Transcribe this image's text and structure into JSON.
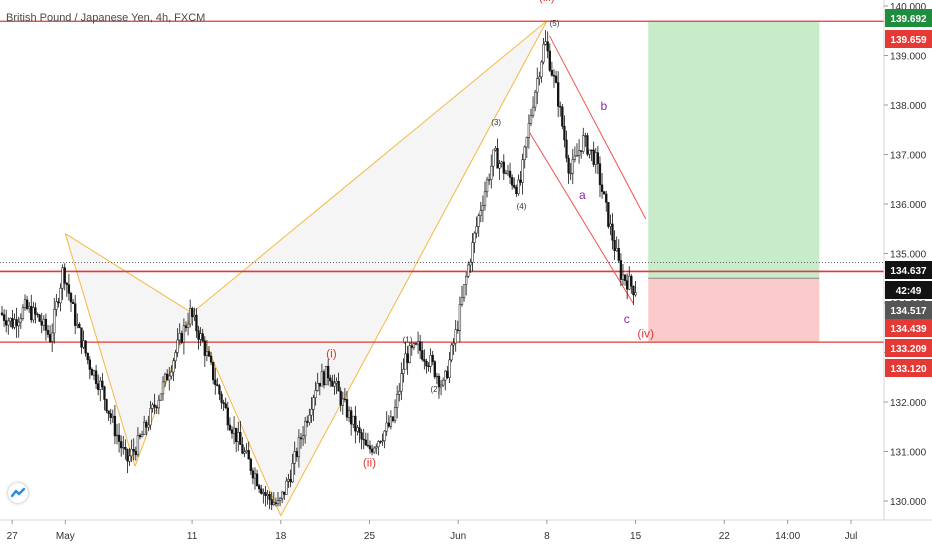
{
  "header": {
    "symbol_title": "British Pound / Japanese Yen, 4h, FXCM"
  },
  "colors": {
    "candle": "#131313",
    "harmonic_stroke": "#f5b942",
    "level_line": "#e53935",
    "channel": "#ef5350",
    "wave_red": "#e53935",
    "wave_purple": "#8e24aa",
    "tp_zone": "#c8ecc9",
    "sl_zone": "#fbcaca",
    "axis_text": "#333333",
    "badge_red": "#e53935",
    "badge_green": "#1e8e3e",
    "badge_black": "#131313",
    "badge_gray": "#555555"
  },
  "chart_data": {
    "type": "candlestick",
    "title": "British Pound / Japanese Yen, 4h, FXCM",
    "y_axis": {
      "range": [
        129.7,
        140.1
      ],
      "ticks": [
        "130.000",
        "131.000",
        "132.000",
        "133.000",
        "134.000",
        "135.000",
        "136.000",
        "137.000",
        "138.000",
        "139.000",
        "140.000"
      ]
    },
    "x_axis": {
      "ticks": [
        {
          "label": "27",
          "t": 0.8
        },
        {
          "label": "May",
          "t": 5.0
        },
        {
          "label": "11",
          "t": 15.0
        },
        {
          "label": "18",
          "t": 22.0
        },
        {
          "label": "25",
          "t": 29.0
        },
        {
          "label": "Jun",
          "t": 36.0
        },
        {
          "label": "8",
          "t": 43.0
        },
        {
          "label": "15",
          "t": 50.0
        },
        {
          "label": "22",
          "t": 57.0
        },
        {
          "label": "14:00",
          "t": 62.0
        },
        {
          "label": "Jul",
          "t": 67.0
        }
      ]
    },
    "price_path": [
      [
        0,
        133.8
      ],
      [
        1,
        133.6
      ],
      [
        2,
        133.9
      ],
      [
        3,
        133.7
      ],
      [
        4,
        133.3
      ],
      [
        5,
        134.7
      ],
      [
        6,
        133.6
      ],
      [
        7,
        132.8
      ],
      [
        8,
        132.3
      ],
      [
        9,
        131.5
      ],
      [
        10,
        130.8
      ],
      [
        11,
        131.2
      ],
      [
        12,
        131.8
      ],
      [
        13,
        132.4
      ],
      [
        14,
        133.1
      ],
      [
        15,
        133.8
      ],
      [
        16,
        133.2
      ],
      [
        17,
        132.4
      ],
      [
        18,
        131.7
      ],
      [
        19,
        131.1
      ],
      [
        20,
        130.6
      ],
      [
        21,
        130.1
      ],
      [
        22,
        129.9
      ],
      [
        23,
        130.6
      ],
      [
        24,
        131.5
      ],
      [
        25,
        132.4
      ],
      [
        26,
        132.6
      ],
      [
        27,
        132.0
      ],
      [
        28,
        131.5
      ],
      [
        29,
        131.0
      ],
      [
        30,
        131.3
      ],
      [
        31,
        131.6
      ],
      [
        32,
        132.9
      ],
      [
        33,
        133.1
      ],
      [
        34,
        132.8
      ],
      [
        35,
        132.3
      ],
      [
        36,
        133.4
      ],
      [
        37,
        134.8
      ],
      [
        38,
        136.0
      ],
      [
        39,
        137.0
      ],
      [
        40,
        136.6
      ],
      [
        41,
        136.3
      ],
      [
        42,
        138.0
      ],
      [
        43,
        139.3
      ],
      [
        44,
        138.2
      ],
      [
        45,
        136.6
      ],
      [
        46,
        137.3
      ],
      [
        47,
        136.9
      ],
      [
        48,
        135.7
      ],
      [
        49,
        134.6
      ],
      [
        50,
        134.3
      ]
    ],
    "levels": [
      {
        "price": 139.692,
        "label": "139.692",
        "kind": "level"
      },
      {
        "price": 134.637,
        "label": "134.637",
        "kind": "level"
      },
      {
        "price": 133.209,
        "label": "133.209",
        "kind": "level"
      }
    ],
    "harmonic_pattern": [
      [
        5,
        135.4
      ],
      [
        15,
        133.8
      ],
      [
        43,
        139.7
      ],
      [
        22,
        129.7
      ],
      [
        15,
        133.8
      ]
    ],
    "harmonic_points": {
      "X": [
        5,
        135.4
      ],
      "A": [
        10.5,
        130.7
      ],
      "B": [
        15,
        133.8
      ],
      "C": [
        22,
        129.7
      ],
      "D": [
        43,
        139.7
      ]
    },
    "correction_channel": [
      {
        "from": [
          43.2,
          139.4
        ],
        "to": [
          50.8,
          135.7
        ]
      },
      {
        "from": [
          41.5,
          137.5
        ],
        "to": [
          49.8,
          134.0
        ]
      }
    ],
    "wave_labels": [
      {
        "text": "(iii)",
        "t": 43.0,
        "price": 140.1,
        "color": "red",
        "size": 12
      },
      {
        "text": "(5)",
        "t": 43.6,
        "price": 139.6,
        "color": "dark",
        "size": 8
      },
      {
        "text": "(3)",
        "t": 39.0,
        "price": 137.6,
        "color": "dark",
        "size": 8
      },
      {
        "text": "(4)",
        "t": 41.0,
        "price": 135.9,
        "color": "dark",
        "size": 8
      },
      {
        "text": "(1)",
        "t": 32.0,
        "price": 133.2,
        "color": "dark",
        "size": 8
      },
      {
        "text": "(2)",
        "t": 34.2,
        "price": 132.2,
        "color": "dark",
        "size": 8
      },
      {
        "text": "(i)",
        "t": 26.0,
        "price": 132.9,
        "color": "red",
        "size": 12
      },
      {
        "text": "(ii)",
        "t": 29.0,
        "price": 130.7,
        "color": "red",
        "size": 12
      },
      {
        "text": "b",
        "t": 47.5,
        "price": 137.9,
        "color": "purple",
        "size": 12
      },
      {
        "text": "a",
        "t": 45.8,
        "price": 136.1,
        "color": "purple",
        "size": 12
      },
      {
        "text": "c",
        "t": 49.3,
        "price": 133.6,
        "color": "purple",
        "size": 12
      },
      {
        "text": "(iv)",
        "t": 50.8,
        "price": 133.3,
        "color": "red",
        "size": 12
      }
    ],
    "position": {
      "t_start": 51.0,
      "t_end": 64.5,
      "entry": 134.5,
      "take_profit": 139.692,
      "stop_loss": 133.209
    },
    "price_badges": [
      {
        "label": "139.692",
        "price": 139.692,
        "style": "green"
      },
      {
        "label": "139.659",
        "price": 139.659,
        "style": "red"
      },
      {
        "label": "134.637",
        "price": 134.637,
        "style": "black"
      },
      {
        "label": "42:49",
        "price": 134.637,
        "style": "black_time"
      },
      {
        "label": "134.517",
        "price": 134.517,
        "style": "gray"
      },
      {
        "label": "134.439",
        "price": 134.439,
        "style": "red"
      },
      {
        "label": "133.209",
        "price": 133.209,
        "style": "red"
      },
      {
        "label": "133.120",
        "price": 133.12,
        "style": "red"
      }
    ]
  }
}
